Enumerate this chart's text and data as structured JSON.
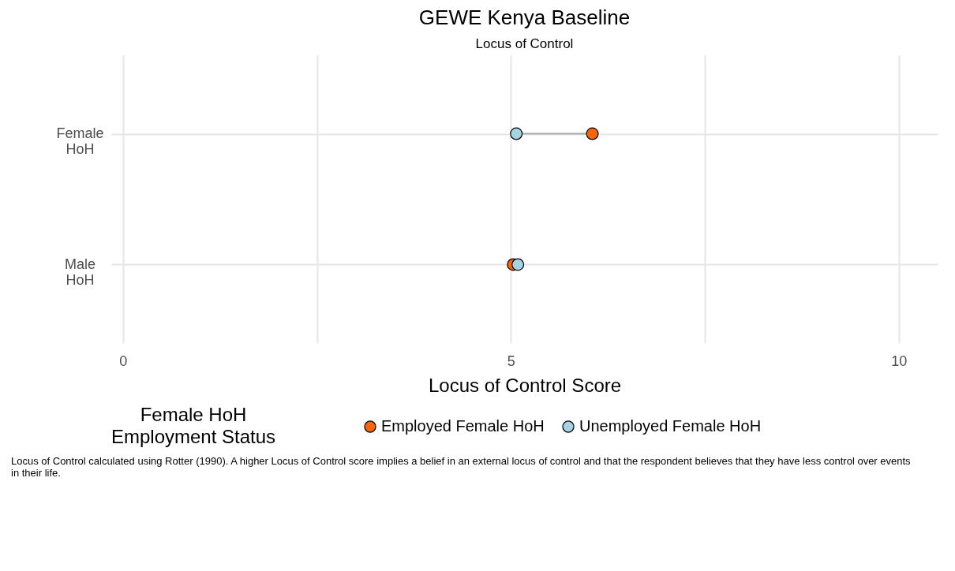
{
  "chart_data": {
    "type": "scatter",
    "title": "GEWE Kenya Baseline",
    "subtitle": "Locus of Control",
    "orientation": "horizontal",
    "categories": [
      "Female HoH",
      "Male HoH"
    ],
    "series": [
      {
        "name": "Employed Female HoH",
        "color": "#f8650c",
        "values": [
          6.05,
          5.03
        ]
      },
      {
        "name": "Unemployed Female HoH",
        "color": "#a6d3e3",
        "values": [
          5.07,
          5.09
        ]
      }
    ],
    "xlabel": "Locus of Control Score",
    "legend_title": "Female HoH Employment Status",
    "xlim": [
      -0.15,
      10.5
    ],
    "xticks": [
      0,
      {
        "value": 2.5,
        "label": null
      },
      5,
      {
        "value": 7.5,
        "label": null
      },
      10
    ],
    "grid": true,
    "legend": "bottom",
    "marker": "circle",
    "annotations": [
      "Locus of Control calculated using Rotter (1990). A higher Locus of Control score implies a belief in an external locus of control and that the respondent believes that they have less control over events in their life."
    ]
  }
}
